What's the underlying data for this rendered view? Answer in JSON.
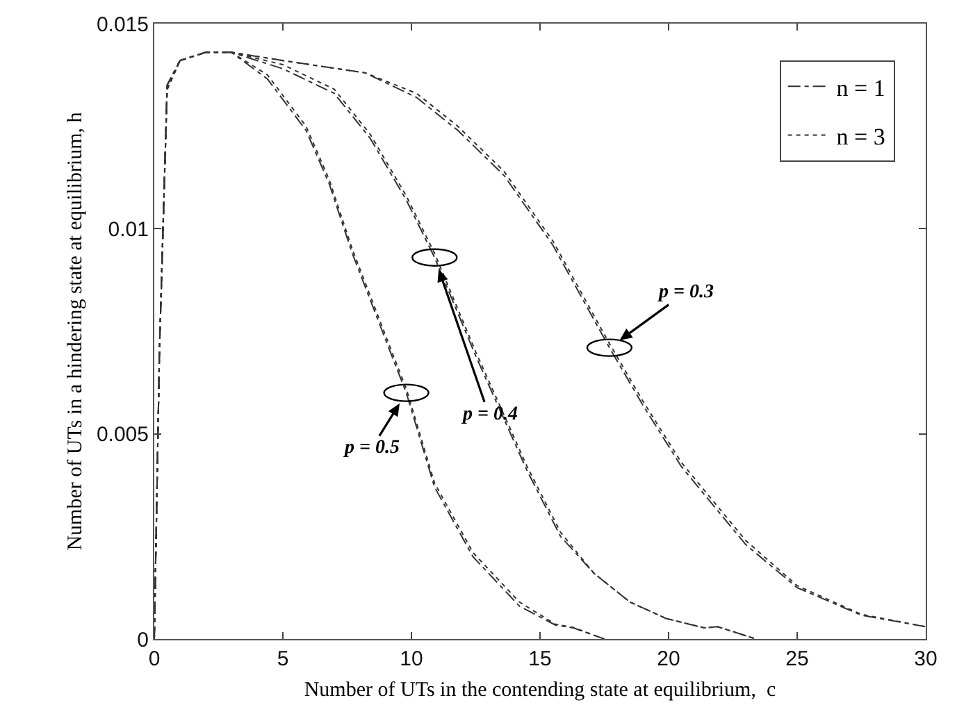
{
  "chart_data": {
    "type": "line",
    "xlabel": "Number of UTs in the contending state at equilibrium,  c",
    "ylabel": "Number of UTs in a hindering state at equilibrium, h",
    "x": [
      0,
      0.2,
      0.5,
      1,
      2,
      3,
      4.4,
      5.9,
      6.8,
      7.7,
      9.3,
      9.8,
      10.9,
      12.4,
      14.2,
      15.6,
      16.3,
      17.5
    ],
    "series": [
      {
        "name": "n = 1",
        "color": "#333333",
        "line_style": "dashed",
        "values": [
          0,
          0.007,
          0.0135,
          0.0141,
          0.0143,
          0.0143,
          0.01365,
          0.0124,
          0.0111,
          0.0094,
          0.0068,
          0.006,
          0.0037,
          0.002,
          0.0008,
          0.00034,
          0.00027,
          0
        ]
      },
      {
        "name": "n = 3",
        "color": "#333333",
        "line_style": "dotted",
        "values": [
          0,
          0.007,
          0.0134,
          0.0141,
          0.0143,
          0.0143,
          0.01375,
          0.0125,
          0.0112,
          0.0095,
          0.0069,
          0.0061,
          0.0038,
          0.0021,
          0.0009,
          0.00036,
          0.00028,
          0
        ]
      },
      {
        "color": "#333333",
        "line_style": "dashed",
        "x": [
          0,
          0.2,
          0.5,
          1,
          2,
          3,
          5,
          7,
          8.4,
          9.8,
          10.9,
          12.5,
          14.5,
          15.8,
          17.1,
          18.5,
          19.9,
          21.4,
          21.9,
          23.4
        ],
        "values": [
          0,
          0.007,
          0.0135,
          0.0141,
          0.0143,
          0.0143,
          0.0139,
          0.0133,
          0.0122,
          0.0107,
          0.0093,
          0.0069,
          0.0041,
          0.0025,
          0.0016,
          0.0009,
          0.0005,
          0.00027,
          0.0003,
          0
        ]
      },
      {
        "color": "#333333",
        "line_style": "dotted",
        "x": [
          0,
          0.2,
          0.5,
          1,
          2,
          3,
          5,
          7,
          8.4,
          9.8,
          10.9,
          12.5,
          14.5,
          15.8,
          17.1,
          18.5,
          19.9,
          21.4,
          21.9,
          23.4
        ],
        "values": [
          0,
          0.007,
          0.0134,
          0.0141,
          0.0143,
          0.0143,
          0.014,
          0.0134,
          0.0123,
          0.0108,
          0.0094,
          0.007,
          0.0042,
          0.0026,
          0.0016,
          0.0009,
          0.0005,
          0.00027,
          0.0003,
          0
        ]
      },
      {
        "color": "#333333",
        "line_style": "dashed",
        "x": [
          0,
          0.2,
          0.5,
          1,
          2,
          3,
          5,
          8.2,
          10.2,
          11.8,
          13.6,
          15.5,
          17.7,
          19,
          20.5,
          23,
          25,
          27.5,
          30
        ],
        "values": [
          0,
          0.007,
          0.0135,
          0.0141,
          0.0143,
          0.0143,
          0.0141,
          0.0138,
          0.0132,
          0.0124,
          0.0113,
          0.0096,
          0.0071,
          0.0057,
          0.0042,
          0.0023,
          0.00125,
          0.00058,
          0.0003
        ]
      },
      {
        "color": "#333333",
        "line_style": "dotted",
        "x": [
          0,
          0.2,
          0.5,
          1,
          2,
          3,
          5,
          8.2,
          10.2,
          11.8,
          13.6,
          15.5,
          17.7,
          19,
          20.5,
          23,
          25,
          27.5,
          30
        ],
        "values": [
          0,
          0.007,
          0.0134,
          0.0141,
          0.0143,
          0.0143,
          0.0141,
          0.0138,
          0.0133,
          0.0125,
          0.0114,
          0.0097,
          0.0072,
          0.0058,
          0.0043,
          0.0024,
          0.0013,
          0.0006,
          0.0003
        ]
      }
    ],
    "annotations": [
      {
        "text": "p = 0.5",
        "x": 9.8,
        "y": 0.006
      },
      {
        "text": "p = 0.4",
        "x": 10.9,
        "y": 0.0093
      },
      {
        "text": "p = 0.3",
        "x": 17.7,
        "y": 0.0071
      }
    ],
    "xlim": [
      0,
      30
    ],
    "xticks": [
      0,
      5,
      10,
      15,
      20,
      25,
      30
    ],
    "ylim": [
      0,
      0.015
    ],
    "yticks": [
      0,
      0.005,
      0.01,
      0.015
    ],
    "grid": false,
    "legend": "top right",
    "marker": "none"
  }
}
